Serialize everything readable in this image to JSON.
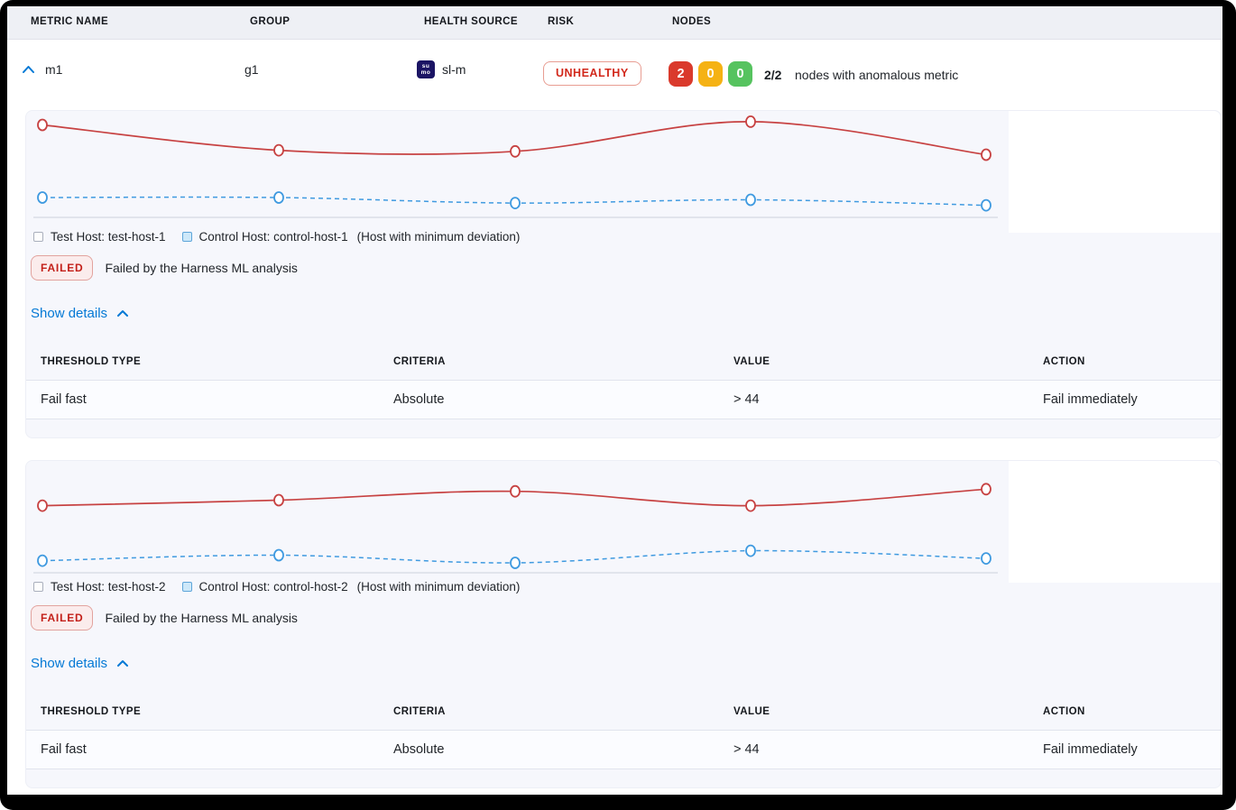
{
  "columns": {
    "metric_name": "METRIC NAME",
    "group": "GROUP",
    "health_source": "HEALTH SOURCE",
    "risk": "RISK",
    "nodes": "NODES"
  },
  "row": {
    "metric_name": "m1",
    "group": "g1",
    "health_source_name": "sl-m",
    "health_source_icon": "sumo-logic-icon",
    "health_source_icon_text_top": "su",
    "health_source_icon_text_bottom": "mo",
    "risk_badge": "UNHEALTHY",
    "nodes": {
      "anomalous": "2",
      "warning": "0",
      "healthy": "0",
      "ratio": "2/2",
      "label": "nodes with anomalous metric"
    }
  },
  "sections": [
    {
      "legend": {
        "test": "Test Host: test-host-1",
        "control": "Control Host: control-host-1",
        "note": "(Host with minimum deviation)"
      },
      "status": {
        "badge": "FAILED",
        "message": "Failed by the Harness ML analysis"
      },
      "details_toggle": "Show details",
      "table": {
        "headers": [
          "THRESHOLD TYPE",
          "CRITERIA",
          "VALUE",
          "ACTION"
        ],
        "rows": [
          [
            "Fail fast",
            "Absolute",
            "> 44",
            "Fail immediately"
          ]
        ]
      }
    },
    {
      "legend": {
        "test": "Test Host: test-host-2",
        "control": "Control Host: control-host-2",
        "note": "(Host with minimum deviation)"
      },
      "status": {
        "badge": "FAILED",
        "message": "Failed by the Harness ML analysis"
      },
      "details_toggle": "Show details",
      "table": {
        "headers": [
          "THRESHOLD TYPE",
          "CRITERIA",
          "VALUE",
          "ACTION"
        ],
        "rows": [
          [
            "Fail fast",
            "Absolute",
            "> 44",
            "Fail immediately"
          ]
        ]
      }
    }
  ],
  "chart_data": [
    {
      "type": "line",
      "axes": "hidden",
      "legend_position": "bottom",
      "ylim": [
        0,
        100
      ],
      "series": [
        {
          "name": "Test Host: test-host-1",
          "color": "#c74242",
          "dash": "solid",
          "marker": "hollow-circle",
          "values": [
            84,
            61,
            60,
            87,
            57
          ]
        },
        {
          "name": "Control Host: control-host-1",
          "color": "#3f9ae0",
          "dash": "dashed",
          "marker": "hollow-circle",
          "values": [
            18,
            18,
            13,
            16,
            11
          ]
        }
      ]
    },
    {
      "type": "line",
      "axes": "hidden",
      "legend_position": "bottom",
      "ylim": [
        0,
        100
      ],
      "series": [
        {
          "name": "Test Host: test-host-2",
          "color": "#c74242",
          "dash": "solid",
          "marker": "hollow-circle",
          "values": [
            61,
            66,
            74,
            61,
            76
          ]
        },
        {
          "name": "Control Host: control-host-2",
          "color": "#3f9ae0",
          "dash": "dashed",
          "marker": "hollow-circle",
          "values": [
            11,
            16,
            9,
            20,
            13
          ]
        }
      ]
    }
  ],
  "colors": {
    "accent_blue": "#0278d5",
    "risk_red": "#d2281b",
    "node_red": "#da3a2c",
    "node_amber": "#f5b214",
    "node_green": "#56c35f",
    "test_series": "#c74242",
    "control_series": "#3f9ae0",
    "card_bg": "#f6f7fc",
    "header_bg": "#eef0f5"
  }
}
